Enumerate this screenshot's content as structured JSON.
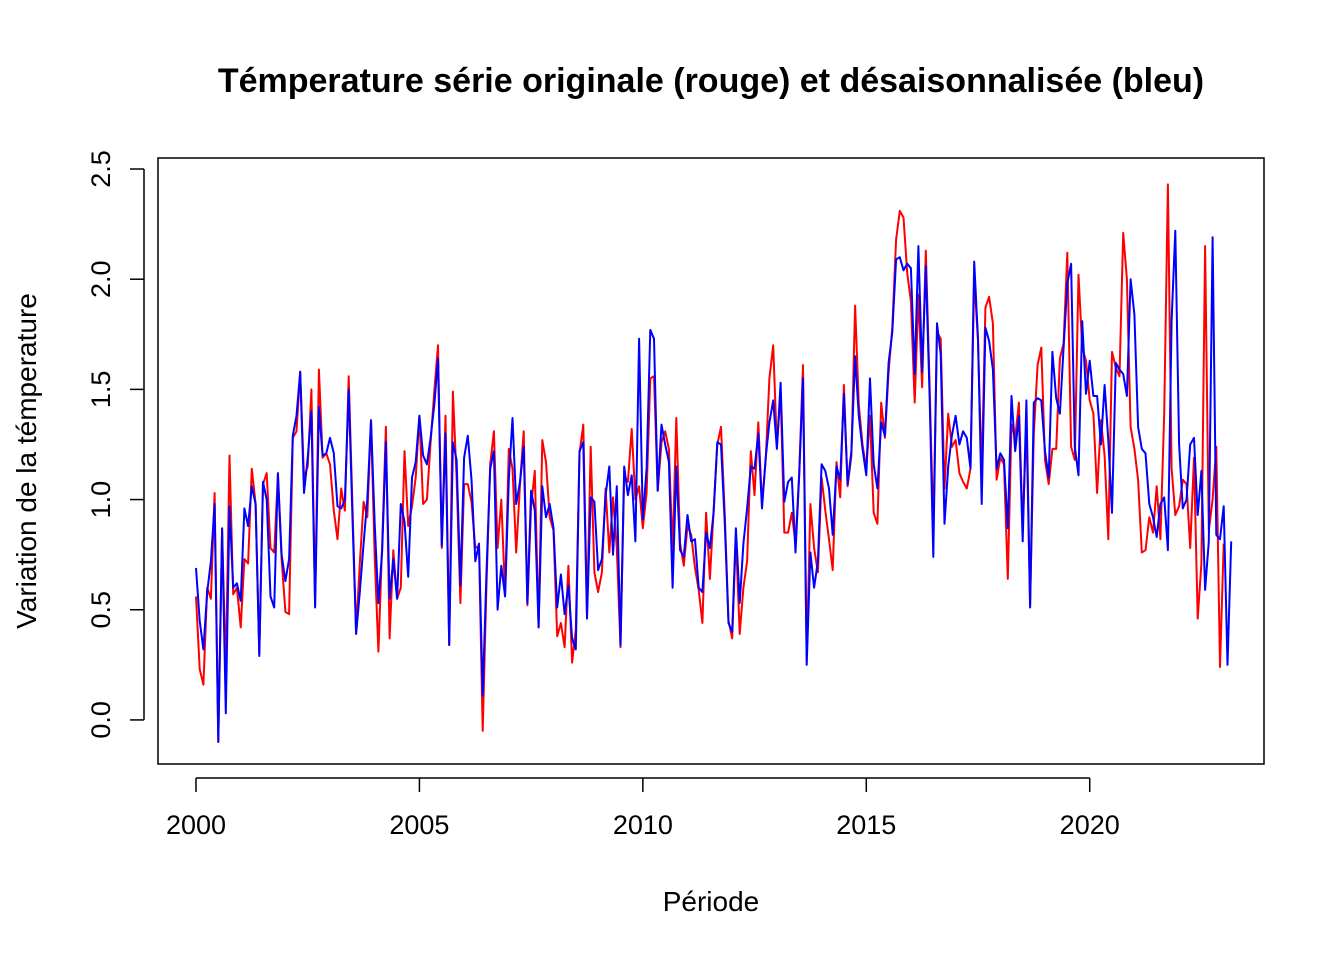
{
  "chart_data": {
    "type": "line",
    "title": "Témperature série originale (rouge) et désaisonnalisée (bleu)",
    "xlabel": "Période",
    "ylabel": "Variation de la témperature",
    "xlim": [
      1999.15,
      2023.9
    ],
    "ylim": [
      -0.2,
      2.55
    ],
    "x_ticks": [
      2000,
      2005,
      2010,
      2015,
      2020
    ],
    "y_ticks": [
      0.0,
      0.5,
      1.0,
      1.5,
      2.0,
      2.5
    ],
    "x_tick_labels": [
      "2000",
      "2005",
      "2010",
      "2015",
      "2020"
    ],
    "y_tick_labels": [
      "0.0",
      "0.5",
      "1.0",
      "1.5",
      "2.0",
      "2.5"
    ],
    "x_start": 2000.0,
    "x_step": 0.08333,
    "grid": false,
    "legend": "none",
    "series": [
      {
        "color": "#ff0000",
        "values": [
          0.56,
          0.23,
          0.16,
          0.6,
          0.55,
          1.03,
          -0.1,
          0.86,
          0.22,
          1.2,
          0.57,
          0.6,
          0.42,
          0.73,
          0.71,
          1.14,
          0.98,
          0.3,
          1.07,
          1.12,
          0.78,
          0.76,
          1.11,
          0.73,
          0.49,
          0.48,
          1.28,
          1.31,
          1.58,
          1.1,
          1.15,
          1.5,
          0.52,
          1.59,
          1.19,
          1.21,
          1.16,
          0.95,
          0.82,
          1.05,
          0.95,
          1.56,
          0.98,
          0.4,
          0.71,
          0.99,
          0.92,
          1.36,
          0.74,
          0.31,
          0.8,
          1.33,
          0.37,
          0.77,
          0.55,
          0.6,
          1.22,
          0.88,
          0.97,
          1.1,
          1.38,
          0.98,
          1.0,
          1.26,
          1.49,
          1.7,
          0.78,
          1.38,
          0.34,
          1.49,
          1.1,
          0.53,
          1.07,
          1.07,
          0.99,
          0.78,
          0.79,
          -0.05,
          0.6,
          1.16,
          1.31,
          0.78,
          1.0,
          0.57,
          1.23,
          1.14,
          0.76,
          1.07,
          1.31,
          0.52,
          0.97,
          1.13,
          0.42,
          1.27,
          1.17,
          0.92,
          0.86,
          0.38,
          0.44,
          0.33,
          0.7,
          0.26,
          0.41,
          1.21,
          1.34,
          0.48,
          1.24,
          0.67,
          0.58,
          0.67,
          1.05,
          0.76,
          1.01,
          0.78,
          0.33,
          1.11,
          1.08,
          1.32,
          1.0,
          1.06,
          0.87,
          1.03,
          1.55,
          1.56,
          1.04,
          1.26,
          1.31,
          1.23,
          0.76,
          1.37,
          0.8,
          0.7,
          0.88,
          0.84,
          0.69,
          0.59,
          0.44,
          0.94,
          0.64,
          0.95,
          1.25,
          1.33,
          0.93,
          0.45,
          0.37,
          0.83,
          0.39,
          0.6,
          0.72,
          1.22,
          1.02,
          1.35,
          0.98,
          1.18,
          1.55,
          1.7,
          1.24,
          1.49,
          0.85,
          0.85,
          0.94,
          0.8,
          1.12,
          1.61,
          0.27,
          0.98,
          0.78,
          0.67,
          1.1,
          0.95,
          0.82,
          0.68,
          1.17,
          1.01,
          1.52,
          1.06,
          1.2,
          1.88,
          1.43,
          1.25,
          1.14,
          1.38,
          0.94,
          0.89,
          1.44,
          1.28,
          1.58,
          1.78,
          2.18,
          2.31,
          2.28,
          2.03,
          1.9,
          1.44,
          1.93,
          1.51,
          2.13,
          1.52,
          0.86,
          1.76,
          1.73,
          1.05,
          1.39,
          1.24,
          1.27,
          1.12,
          1.08,
          1.05,
          1.14,
          2.01,
          1.72,
          1.11,
          1.87,
          1.92,
          1.8,
          1.09,
          1.19,
          1.16,
          0.64,
          1.34,
          1.28,
          1.44,
          0.87,
          1.35,
          0.52,
          1.3,
          1.61,
          1.69,
          1.18,
          1.07,
          1.23,
          1.23,
          1.64,
          1.71,
          2.12,
          1.24,
          1.18,
          2.02,
          1.69,
          1.63,
          1.45,
          1.39,
          1.03,
          1.36,
          1.2,
          0.82,
          1.67,
          1.6,
          1.56,
          2.21,
          2.0,
          1.33,
          1.23,
          1.09,
          0.76,
          0.77,
          0.92,
          0.85,
          1.06,
          0.82,
          1.39,
          2.43,
          1.14,
          0.93,
          0.97,
          1.09,
          1.07,
          0.78,
          1.19,
          0.46,
          0.71,
          2.15,
          0.86,
          1.0,
          1.24,
          0.24,
          0.8
        ]
      },
      {
        "color": "#0000ff",
        "values": [
          0.69,
          0.45,
          0.32,
          0.58,
          0.72,
          0.98,
          -0.1,
          0.87,
          0.03,
          0.97,
          0.6,
          0.62,
          0.54,
          0.96,
          0.88,
          1.06,
          0.98,
          0.29,
          1.08,
          1.0,
          0.56,
          0.51,
          1.12,
          0.75,
          0.63,
          0.73,
          1.29,
          1.38,
          1.58,
          1.03,
          1.19,
          1.4,
          0.51,
          1.42,
          1.2,
          1.21,
          1.28,
          1.21,
          0.97,
          0.96,
          1.0,
          1.5,
          0.93,
          0.39,
          0.58,
          0.8,
          1.0,
          1.36,
          0.89,
          0.53,
          0.77,
          1.26,
          0.55,
          0.73,
          0.55,
          0.98,
          0.9,
          0.65,
          1.1,
          1.17,
          1.38,
          1.2,
          1.16,
          1.28,
          1.43,
          1.64,
          0.79,
          1.3,
          0.34,
          1.26,
          1.18,
          0.61,
          1.19,
          1.29,
          1.09,
          0.72,
          0.8,
          0.11,
          0.66,
          1.14,
          1.22,
          0.5,
          0.7,
          0.56,
          1.09,
          1.37,
          0.98,
          1.08,
          1.24,
          0.53,
          1.04,
          0.95,
          0.42,
          1.06,
          0.92,
          0.98,
          0.87,
          0.51,
          0.66,
          0.48,
          0.61,
          0.37,
          0.32,
          1.22,
          1.26,
          0.46,
          1.01,
          0.99,
          0.68,
          0.73,
          1.02,
          1.15,
          0.75,
          1.06,
          0.34,
          1.15,
          1.02,
          1.11,
          0.81,
          1.73,
          0.91,
          1.14,
          1.77,
          1.73,
          1.04,
          1.34,
          1.25,
          1.17,
          0.6,
          1.15,
          0.77,
          0.74,
          0.93,
          0.81,
          0.82,
          0.6,
          0.58,
          0.85,
          0.78,
          0.94,
          1.26,
          1.25,
          0.89,
          0.44,
          0.4,
          0.87,
          0.53,
          0.8,
          0.96,
          1.15,
          1.14,
          1.3,
          0.96,
          1.19,
          1.35,
          1.45,
          1.23,
          1.53,
          0.99,
          1.08,
          1.1,
          0.76,
          1.11,
          1.55,
          0.25,
          0.76,
          0.6,
          0.72,
          1.16,
          1.13,
          1.05,
          0.84,
          1.15,
          1.09,
          1.48,
          1.07,
          1.22,
          1.65,
          1.38,
          1.23,
          1.11,
          1.55,
          1.16,
          1.05,
          1.35,
          1.29,
          1.62,
          1.76,
          2.09,
          2.1,
          2.04,
          2.07,
          2.05,
          1.57,
          2.15,
          1.58,
          2.06,
          1.47,
          0.74,
          1.8,
          1.66,
          0.89,
          1.15,
          1.29,
          1.38,
          1.25,
          1.31,
          1.28,
          1.14,
          2.08,
          1.73,
          0.98,
          1.78,
          1.72,
          1.59,
          1.14,
          1.21,
          1.18,
          0.87,
          1.47,
          1.22,
          1.38,
          0.81,
          1.45,
          0.51,
          1.44,
          1.46,
          1.45,
          1.22,
          1.1,
          1.67,
          1.46,
          1.39,
          1.69,
          1.98,
          2.07,
          1.24,
          1.11,
          1.81,
          1.48,
          1.63,
          1.47,
          1.47,
          1.25,
          1.52,
          1.27,
          0.94,
          1.62,
          1.59,
          1.57,
          1.47,
          2.0,
          1.84,
          1.33,
          1.23,
          1.21,
          0.98,
          0.92,
          0.83,
          0.98,
          1.01,
          0.77,
          1.81,
          2.22,
          1.25,
          0.96,
          1.0,
          1.25,
          1.28,
          0.93,
          1.13,
          0.59,
          0.81,
          2.19,
          0.84,
          0.82,
          0.97,
          0.25,
          0.81
        ]
      }
    ]
  }
}
